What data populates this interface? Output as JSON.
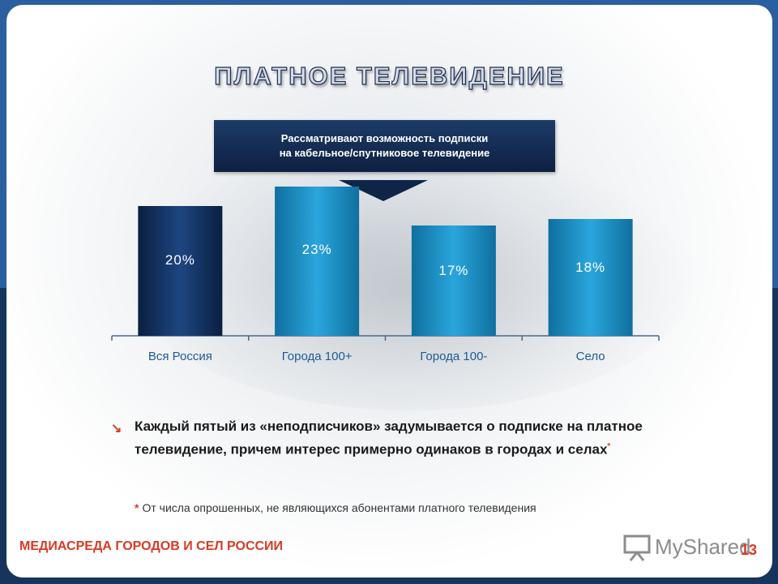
{
  "slide": {
    "title": "ПЛАТНОЕ ТЕЛЕВИДЕНИЕ",
    "callout_line1": "Рассматривают возможность подписки",
    "callout_line2": "на кабельное/спутниковое телевидение",
    "bullet_text": "Каждый пятый из «неподписчиков» задумывается о подписке на платное телевидение, причем  интерес примерно одинаков в городах и селах",
    "bullet_marker": "*",
    "footnote_marker": "*",
    "footnote": "От числа опрошенных, не являющихся абонентами платного телевидения",
    "footer_left": "МЕДИАСРЕДА ГОРОДОВ И СЕЛ РОССИИ",
    "page_number": "13",
    "logo_text": "MyShared",
    "icons": {
      "bullet": "arrow-down-right-icon",
      "logo": "presentation-board-icon"
    }
  },
  "chart_data": {
    "type": "bar",
    "categories": [
      "Вся Россия",
      "Города 100+",
      "Города 100-",
      "Село"
    ],
    "values": [
      20,
      23,
      17,
      18
    ],
    "value_labels": [
      "20%",
      "23%",
      "17%",
      "18%"
    ],
    "ylim": [
      0,
      25
    ],
    "grid": false,
    "colors": [
      "#0f2a55",
      "#1a8fc5",
      "#1a8fc5",
      "#1a8fc5"
    ]
  }
}
